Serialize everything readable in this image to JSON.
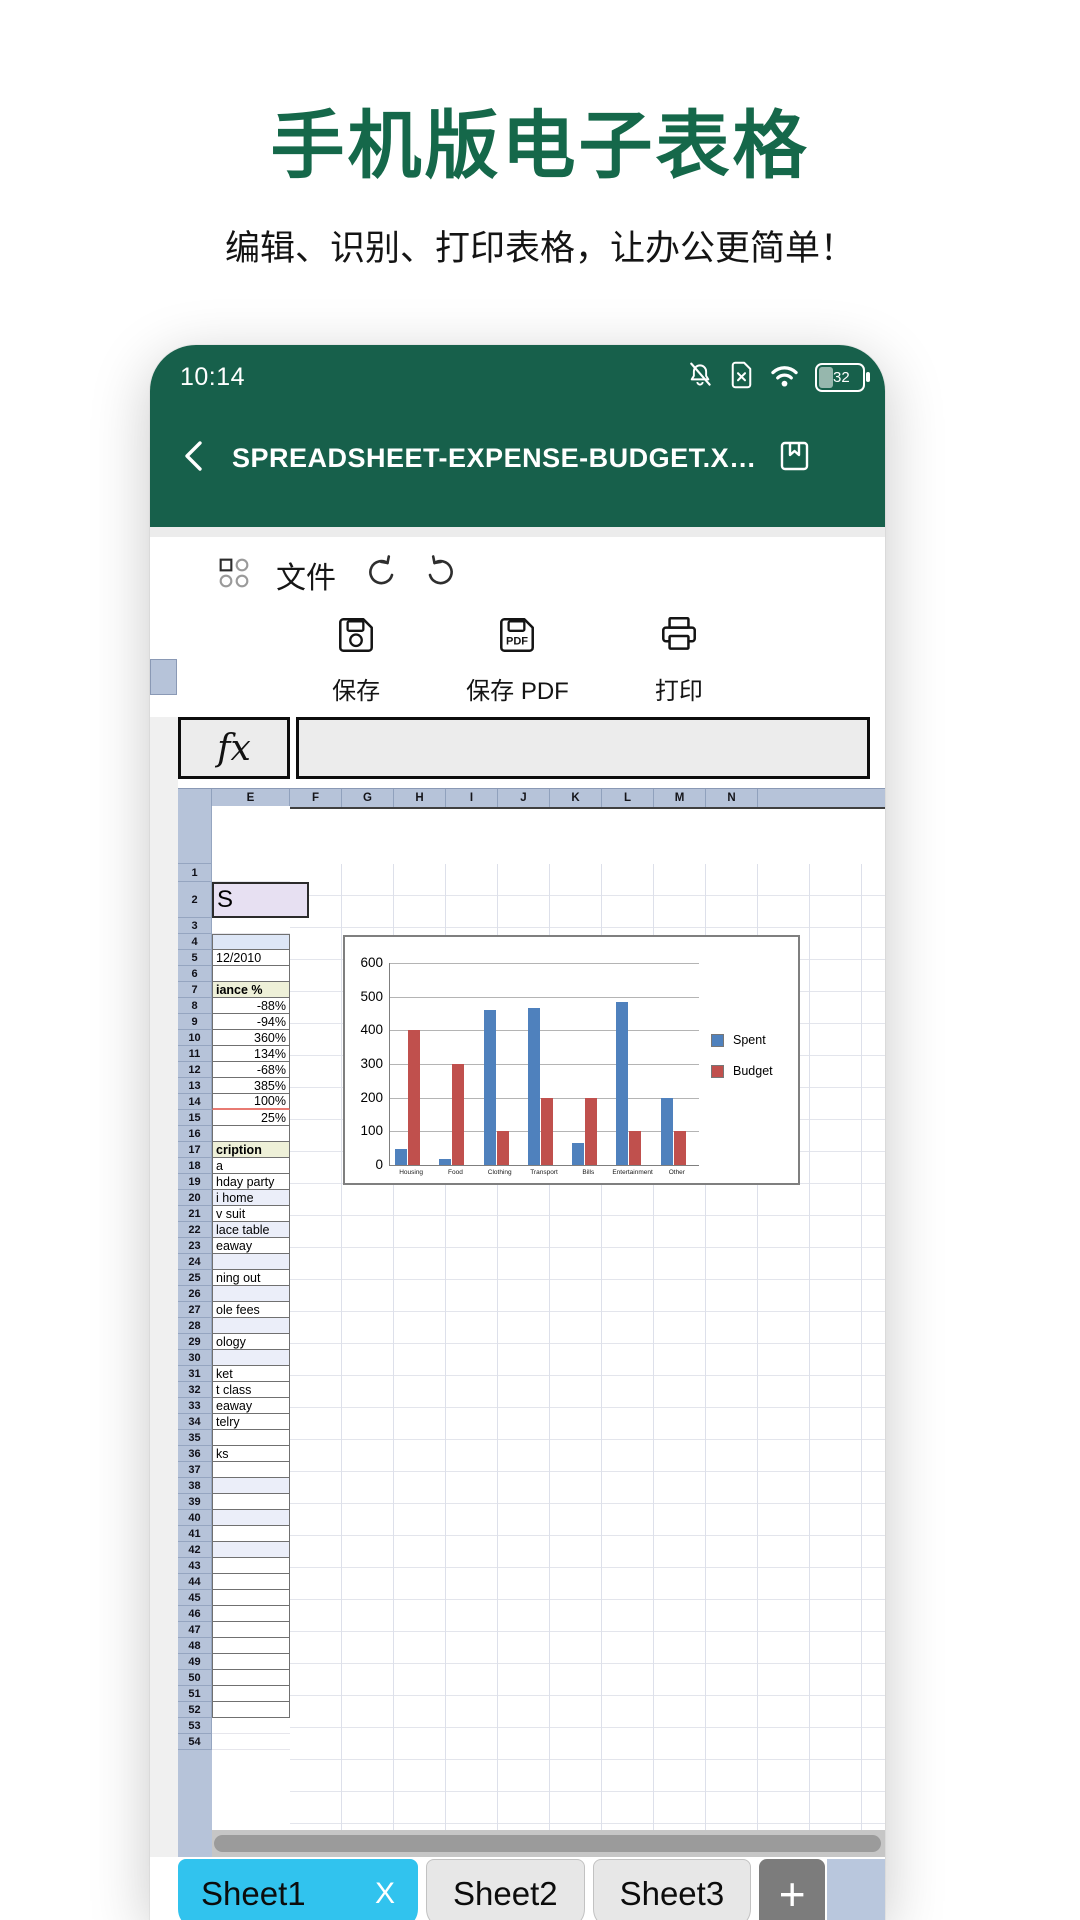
{
  "hero": {
    "title": "手机版电子表格",
    "subtitle": "编辑、识别、打印表格，让办公更简单！"
  },
  "colors": {
    "brand_green": "#17604b",
    "title_green": "#15684a",
    "active_tab_cyan": "#31c3ee",
    "header_blue_gray": "#b6c3d9",
    "series_spent_blue": "#4f81bd",
    "series_budget_red": "#c0504d"
  },
  "statusbar": {
    "time": "10:14",
    "battery": "32",
    "icons": [
      "mute-icon",
      "sim-card-icon",
      "wifi-icon",
      "battery-icon"
    ]
  },
  "navbar": {
    "title": "SPREADSHEET-EXPENSE-BUDGET.X…",
    "icons": [
      "back-chevron-icon",
      "bookmark-icon"
    ]
  },
  "toolbar": {
    "file_label": "文件",
    "save_label": "保存",
    "save_pdf_label": "保存 PDF",
    "print_label": "打印",
    "pdf_icon_text": "PDF",
    "icons": [
      "grid-menu-icon",
      "undo-icon",
      "redo-icon",
      "floppy-icon",
      "floppy-pdf-icon",
      "printer-icon"
    ]
  },
  "formula": {
    "fx_label": "fx",
    "value": ""
  },
  "sheet": {
    "columns": [
      "E",
      "F",
      "G",
      "H",
      "I",
      "J",
      "K",
      "L",
      "M",
      "N"
    ],
    "row_count": 54,
    "tinted_rows": [
      20,
      22,
      24,
      26,
      28,
      30,
      38,
      40,
      42
    ],
    "cells": {
      "2": {
        "text": "S",
        "bg": "lavender"
      },
      "4": {
        "bg": "blue"
      },
      "5": {
        "text": "12/2010"
      },
      "7": {
        "text": "iance %",
        "bold": true,
        "bg": "yellow"
      },
      "8": {
        "text": "-88%",
        "align": "right"
      },
      "9": {
        "text": "-94%",
        "align": "right"
      },
      "10": {
        "text": "360%",
        "align": "right"
      },
      "11": {
        "text": "134%",
        "align": "right"
      },
      "12": {
        "text": "-68%",
        "align": "right"
      },
      "13": {
        "text": "385%",
        "align": "right"
      },
      "14": {
        "text": "100%",
        "align": "right"
      },
      "15": {
        "text": "25%",
        "align": "right"
      },
      "17": {
        "text": "cription",
        "bold": true,
        "bg": "yellow"
      },
      "18": {
        "text": "a"
      },
      "19": {
        "text": "hday party"
      },
      "20": {
        "text": "i home"
      },
      "21": {
        "text": "v suit"
      },
      "22": {
        "text": "lace table"
      },
      "23": {
        "text": "eaway"
      },
      "25": {
        "text": "ning out"
      },
      "27": {
        "text": "ole fees"
      },
      "29": {
        "text": "ology"
      },
      "31": {
        "text": "ket"
      },
      "32": {
        "text": "t class"
      },
      "33": {
        "text": "eaway"
      },
      "34": {
        "text": "telry"
      },
      "36": {
        "text": "ks"
      }
    }
  },
  "chart_data": {
    "type": "bar",
    "categories": [
      "Housing",
      "Food",
      "Clothing",
      "Transport",
      "Bills",
      "Entertainment",
      "Other"
    ],
    "series": [
      {
        "name": "Spent",
        "color": "#4f81bd",
        "values": [
          48,
          18,
          460,
          465,
          65,
          485,
          200
        ]
      },
      {
        "name": "Budget",
        "color": "#c0504d",
        "values": [
          400,
          300,
          100,
          200,
          200,
          100,
          100
        ]
      }
    ],
    "title": "",
    "xlabel": "",
    "ylabel": "",
    "ylim": [
      0,
      600
    ],
    "yticks": [
      0,
      100,
      200,
      300,
      400,
      500,
      600
    ],
    "grid": true,
    "legend_position": "right"
  },
  "sheet_tabs": {
    "tabs": [
      {
        "label": "Sheet1",
        "active": true,
        "close": "X"
      },
      {
        "label": "Sheet2",
        "active": false
      },
      {
        "label": "Sheet3",
        "active": false
      }
    ],
    "add": "+"
  }
}
